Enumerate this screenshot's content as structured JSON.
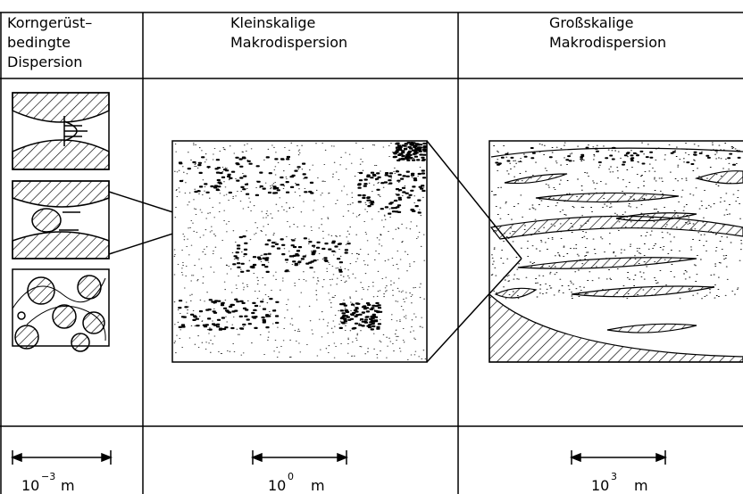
{
  "columns": [
    {
      "title": [
        "Korngerüst–",
        "bedingte",
        "Dispersion"
      ],
      "scale": {
        "base": "10",
        "exponent": "−3",
        "unit": "m"
      }
    },
    {
      "title": [
        "Kleinskalige",
        "Makrodispersion"
      ],
      "scale": {
        "base": "10",
        "exponent": "0",
        "unit": "m"
      }
    },
    {
      "title": [
        "Großskalige",
        "Makrodispersion"
      ],
      "scale": {
        "base": "10",
        "exponent": "3",
        "unit": "m"
      }
    }
  ]
}
